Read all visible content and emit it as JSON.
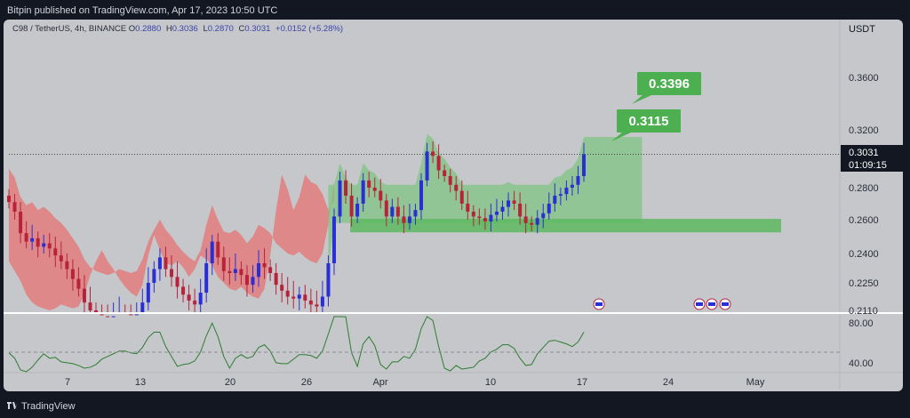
{
  "header": {
    "publisher_line": "Bitpin published on TradingView.com, Apr 17, 2023 10:50 UTC"
  },
  "legend": {
    "symbol": "C98 / TetherUS, 4h, BINANCE",
    "o_label": "O",
    "o": "0.2880",
    "h_label": "H",
    "h": "0.3036",
    "l_label": "L",
    "l": "0.2870",
    "c_label": "C",
    "c": "0.3031",
    "change": "+0.0152 (+5.28%)"
  },
  "footer": {
    "brand": "TradingView"
  },
  "colors": {
    "up": "#2a2ed6",
    "down": "#b8233a",
    "green": "#4caf50",
    "red": "#e57373",
    "rsi": "#2e7d32"
  },
  "chart_data": {
    "type": "candlestick",
    "currency_label": "USDT",
    "price_axis_ticks": [
      "0.3600",
      "0.3200",
      "0.2800",
      "0.2600",
      "0.2400",
      "0.2250",
      "0.2110"
    ],
    "last_price": "0.3031",
    "countdown": "01:09:15",
    "time_axis_ticks": [
      "7",
      "13",
      "20",
      "26",
      "Apr",
      "10",
      "17",
      "24",
      "May"
    ],
    "target_labels": [
      "0.3396",
      "0.3115"
    ],
    "rsi_ticks": [
      "80.00",
      "40.00"
    ],
    "support_zone": [
      0.2525,
      0.2605
    ],
    "close_series": [
      0.271,
      0.265,
      0.252,
      0.247,
      0.249,
      0.244,
      0.246,
      0.243,
      0.239,
      0.236,
      0.232,
      0.227,
      0.222,
      0.215,
      0.211,
      0.209,
      0.208,
      0.207,
      0.208,
      0.21,
      0.209,
      0.208,
      0.209,
      0.215,
      0.225,
      0.232,
      0.238,
      0.232,
      0.228,
      0.223,
      0.219,
      0.216,
      0.214,
      0.22,
      0.235,
      0.247,
      0.238,
      0.231,
      0.23,
      0.232,
      0.229,
      0.224,
      0.228,
      0.235,
      0.233,
      0.23,
      0.224,
      0.221,
      0.218,
      0.217,
      0.219,
      0.216,
      0.214,
      0.213,
      0.218,
      0.235,
      0.262,
      0.285,
      0.275,
      0.262,
      0.27,
      0.285,
      0.28,
      0.278,
      0.272,
      0.262,
      0.268,
      0.262,
      0.258,
      0.262,
      0.266,
      0.285,
      0.305,
      0.302,
      0.292,
      0.288,
      0.282,
      0.278,
      0.27,
      0.265,
      0.262,
      0.261,
      0.259,
      0.263,
      0.265,
      0.268,
      0.272,
      0.27,
      0.262,
      0.258,
      0.257,
      0.261,
      0.264,
      0.27,
      0.275,
      0.276,
      0.28,
      0.282,
      0.288,
      0.3031
    ]
  }
}
